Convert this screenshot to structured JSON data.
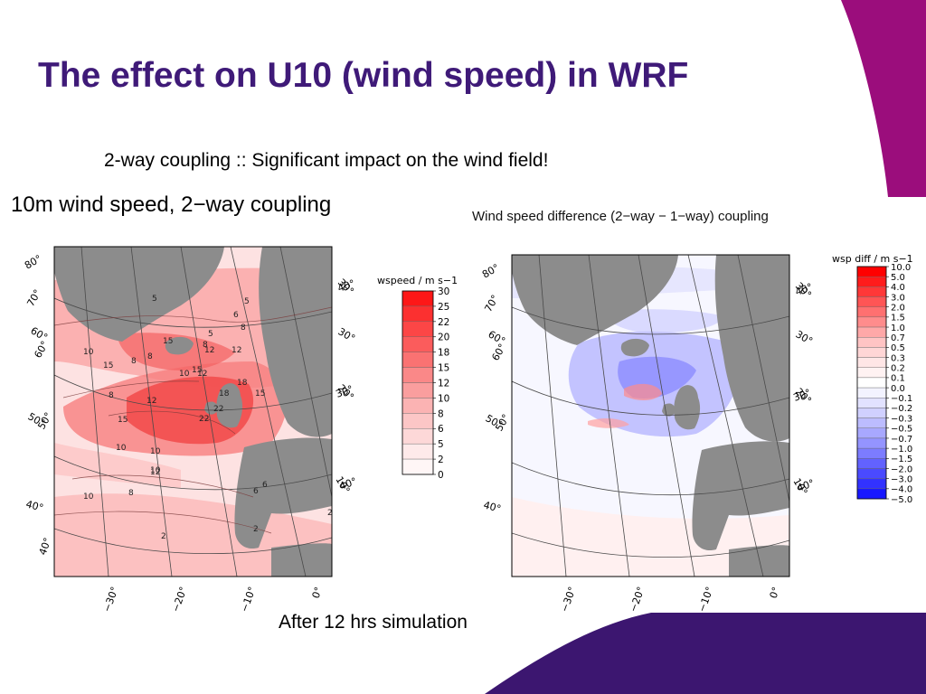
{
  "slide": {
    "title": "The effect on U10 (wind speed) in WRF",
    "subtitle": "2-way coupling :: Significant impact on the wind field!",
    "footer": "After 12 hrs simulation",
    "theme_colors": {
      "title": "#3f1a78",
      "accent_magenta": "#9b0d7c",
      "accent_purple": "#3c1670"
    }
  },
  "maps": {
    "left": {
      "title": "10m wind speed, 2−way coupling",
      "lat_labels_left": [
        "80°",
        "70°",
        "60°",
        "60°",
        "50°",
        "50°",
        "40°",
        "40°"
      ],
      "lon_labels_right": [
        "30°",
        "40°",
        "30°",
        "20°",
        "30°",
        "10°",
        "40°"
      ],
      "lon_labels_bottom": [
        "−30°",
        "−20°",
        "−10°",
        "0°"
      ],
      "contour_labels": [
        "5",
        "5",
        "6",
        "8",
        "8",
        "8",
        "8",
        "10",
        "10",
        "10",
        "10",
        "12",
        "12",
        "12",
        "12",
        "12",
        "15",
        "15",
        "15",
        "15",
        "15",
        "18",
        "18",
        "22",
        "22",
        "6",
        "5",
        "2",
        "2",
        "10",
        "8",
        "2",
        "10",
        "6",
        "8"
      ],
      "legend": {
        "label": "wspeed / m s−1",
        "ticks": [
          "30",
          "25",
          "22",
          "20",
          "18",
          "15",
          "12",
          "10",
          "8",
          "6",
          "5",
          "2",
          "0"
        ],
        "colors": [
          "#fd1717",
          "#fc3030",
          "#fc4646",
          "#fb5c5c",
          "#fa7272",
          "#fa8888",
          "#fa9e9e",
          "#fbb3b3",
          "#fcc6c6",
          "#fdd8d8",
          "#feeaea",
          "#fff6f6"
        ]
      }
    },
    "right": {
      "title": "Wind speed difference (2−way − 1−way) coupling",
      "lat_labels_left": [
        "80°",
        "70°",
        "60°",
        "60°",
        "50°",
        "50°",
        "40°"
      ],
      "lon_labels_right": [
        "30°",
        "40°",
        "30°",
        "20°",
        "30°",
        "10°",
        "40°"
      ],
      "lon_labels_bottom": [
        "−30°",
        "−20°",
        "−10°",
        "0°"
      ],
      "legend": {
        "label": "wsp diff / m s−1",
        "ticks": [
          "10.0",
          "5.0",
          "4.0",
          "3.0",
          "2.0",
          "1.5",
          "1.0",
          "0.7",
          "0.5",
          "0.3",
          "0.2",
          "0.1",
          "0.0",
          "−0.1",
          "−0.2",
          "−0.3",
          "−0.5",
          "−0.7",
          "−1.0",
          "−1.5",
          "−2.0",
          "−3.0",
          "−4.0",
          "−5.0"
        ],
        "colors": [
          "#ff0000",
          "#ff1c1c",
          "#ff3838",
          "#ff5555",
          "#ff7070",
          "#ff8c8c",
          "#ffa8a8",
          "#ffc4c4",
          "#ffd6d6",
          "#ffe6e6",
          "#fff2f2",
          "#ffffff",
          "#f3f3ff",
          "#e2e2ff",
          "#d0d0ff",
          "#bcbcff",
          "#a8a8ff",
          "#9494ff",
          "#7c7cff",
          "#6262ff",
          "#4a4aff",
          "#3232ff",
          "#1818ff"
        ]
      }
    }
  }
}
